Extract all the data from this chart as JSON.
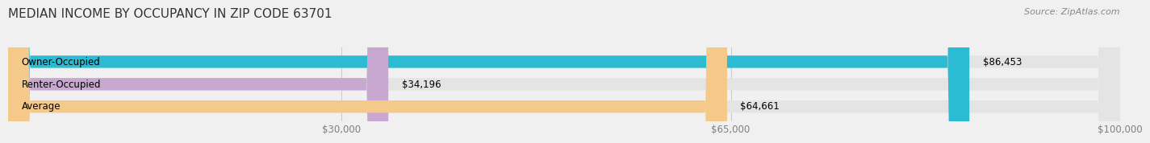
{
  "title": "MEDIAN INCOME BY OCCUPANCY IN ZIP CODE 63701",
  "source": "Source: ZipAtlas.com",
  "categories": [
    "Owner-Occupied",
    "Renter-Occupied",
    "Average"
  ],
  "values": [
    86453,
    34196,
    64661
  ],
  "bar_colors": [
    "#2bbcd4",
    "#c8a8d0",
    "#f5c98a"
  ],
  "bar_labels": [
    "$86,453",
    "$34,196",
    "$64,661"
  ],
  "xlim": [
    0,
    100000
  ],
  "xticks": [
    30000,
    65000,
    100000
  ],
  "xtick_labels": [
    "$30,000",
    "$65,000",
    "$100,000"
  ],
  "background_color": "#f0f0f0",
  "bar_background": "#e4e4e4",
  "bar_height": 0.55,
  "title_fontsize": 11,
  "label_fontsize": 8.5,
  "tick_fontsize": 8.5,
  "source_fontsize": 8
}
